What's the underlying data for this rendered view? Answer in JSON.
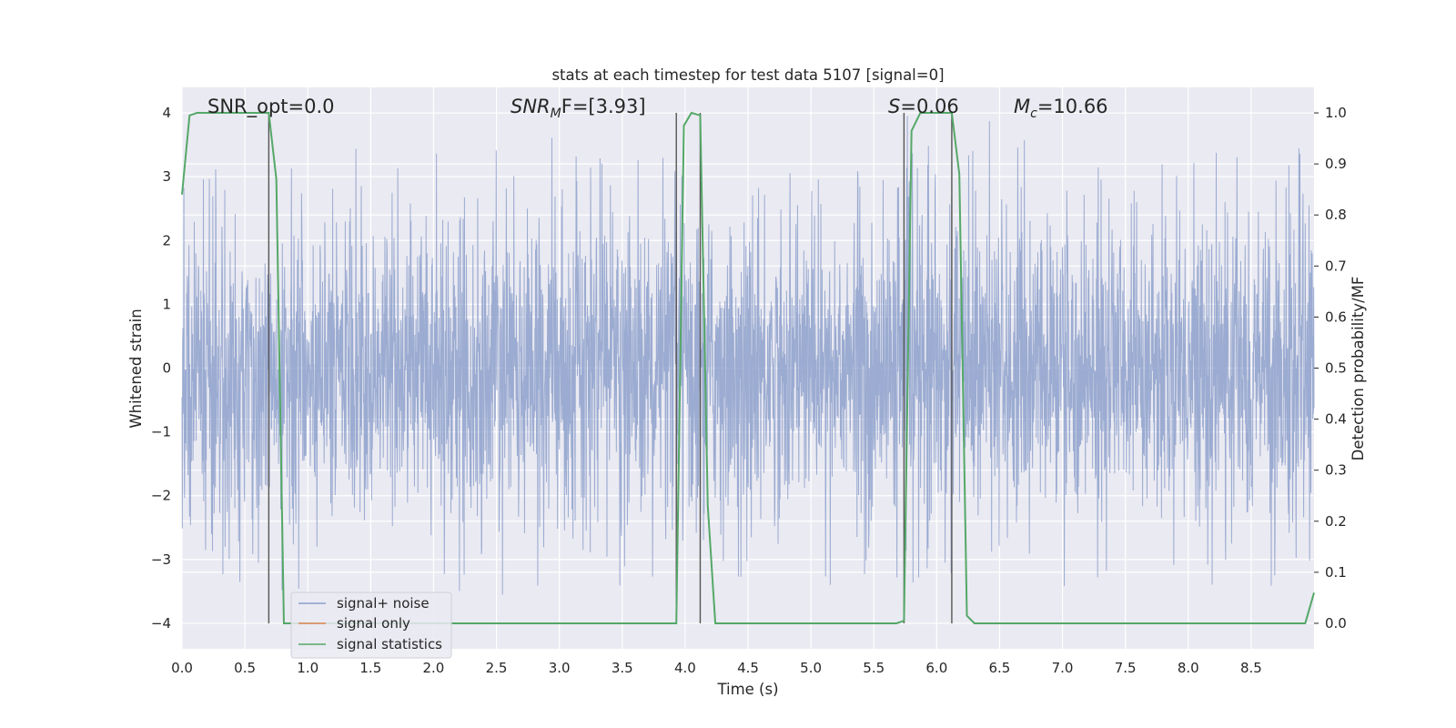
{
  "chart_data": {
    "type": "line",
    "title": "stats at each timestep for test data 5107 [signal=0]",
    "xlabel": "Time (s)",
    "ylabel_left": "Whitened strain",
    "ylabel_right": "Detection probability/MF",
    "xlim": [
      0.0,
      9.0
    ],
    "ylim_left": [
      -4.4,
      4.4
    ],
    "ylim_right": [
      -0.05,
      1.05
    ],
    "xticks": [
      "0.0",
      "0.5",
      "1.0",
      "1.5",
      "2.0",
      "2.5",
      "3.0",
      "3.5",
      "4.0",
      "4.5",
      "5.0",
      "5.5",
      "6.0",
      "6.5",
      "7.0",
      "7.5",
      "8.0",
      "8.5"
    ],
    "yticks_left": [
      "4",
      "3",
      "2",
      "1",
      "0",
      "−1",
      "−2",
      "−3",
      "−4"
    ],
    "yticks_right": [
      "1.0",
      "0.9",
      "0.8",
      "0.7",
      "0.6",
      "0.5",
      "0.4",
      "0.3",
      "0.2",
      "0.1",
      "0.0"
    ],
    "grid": true,
    "legend_position": "lower-left",
    "annotations": [
      {
        "text": "SNR_opt=0.0",
        "x": 0.2
      },
      {
        "text": "SNR_MF=[3.93]",
        "x": 2.6
      },
      {
        "text": "S=0.06",
        "x": 5.6
      },
      {
        "text": "M_c=10.66",
        "x": 6.6
      }
    ],
    "vertical_lines_x": [
      0.69,
      3.93,
      4.12,
      5.74,
      6.12
    ],
    "vertical_lines_ymin": -4,
    "vertical_lines_ymax": 4,
    "series": [
      {
        "name": "signal+ noise",
        "color": "#8da0cb",
        "axis": "left",
        "noise_band": 1.2,
        "spike_extent": 4.0
      },
      {
        "name": "signal only",
        "color": "#dd8452",
        "axis": "left",
        "x": [],
        "y": []
      },
      {
        "name": "signal statistics",
        "color": "#55a868",
        "axis": "right",
        "x": [
          0.0,
          0.06,
          0.12,
          0.69,
          0.75,
          0.81,
          3.93,
          3.99,
          4.05,
          4.12,
          4.18,
          4.24,
          5.68,
          5.74,
          5.8,
          5.87,
          6.12,
          6.18,
          6.24,
          6.3,
          8.93,
          9.0
        ],
        "y": [
          0.84,
          0.995,
          1.0,
          1.0,
          0.87,
          0.0,
          0.0,
          0.975,
          1.0,
          0.995,
          0.23,
          0.0,
          0.0,
          0.005,
          0.965,
          1.0,
          1.0,
          0.88,
          0.015,
          0.0,
          0.0,
          0.06
        ]
      }
    ]
  },
  "annotations_display": {
    "a1": "SNR_opt=0.0",
    "a2_main": "SNR",
    "a2_sub": "M",
    "a2_rest": "F=[3.93]",
    "a3_italic": "S",
    "a3_rest": "=0.06",
    "a4_italic": "M",
    "a4_sub": "c",
    "a4_rest": "=10.66"
  }
}
